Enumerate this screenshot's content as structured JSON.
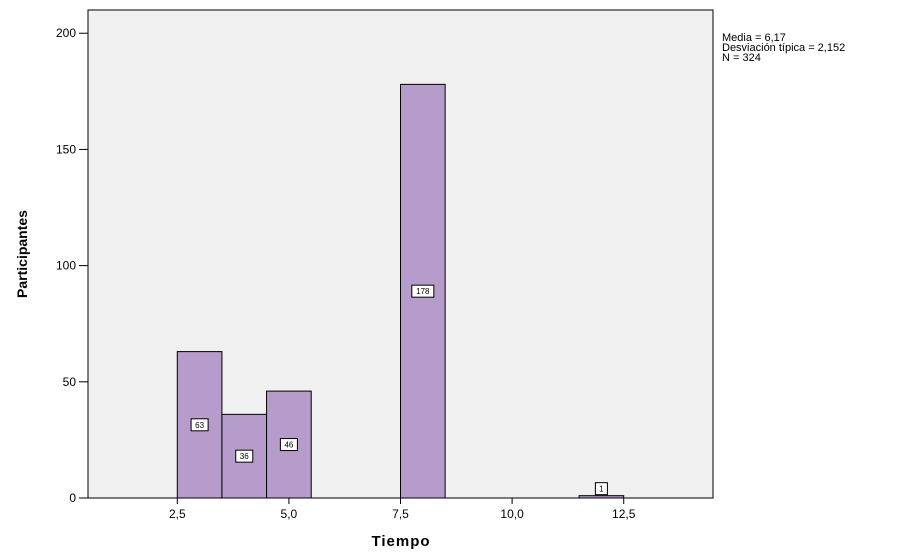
{
  "chart_data": {
    "type": "bar",
    "title": "",
    "xlabel": "Tiempo",
    "ylabel": "Participantes",
    "xlim": [
      0.5,
      14.5
    ],
    "ylim": [
      0,
      210
    ],
    "x_ticks": [
      2.5,
      5.0,
      7.5,
      10.0,
      12.5
    ],
    "x_tick_labels": [
      "2,5",
      "5,0",
      "7,5",
      "10,0",
      "12,5"
    ],
    "y_ticks": [
      0,
      50,
      100,
      150,
      200
    ],
    "y_tick_labels": [
      "0",
      "50",
      "100",
      "150",
      "200"
    ],
    "bins": [
      {
        "from": 2.5,
        "to": 3.5,
        "value": 63,
        "label": "63"
      },
      {
        "from": 3.5,
        "to": 4.5,
        "value": 36,
        "label": "36"
      },
      {
        "from": 4.5,
        "to": 5.5,
        "value": 46,
        "label": "46"
      },
      {
        "from": 7.5,
        "to": 8.5,
        "value": 178,
        "label": "178"
      },
      {
        "from": 11.5,
        "to": 12.5,
        "value": 1,
        "label": "1"
      }
    ],
    "bar_color": "#b59ccb",
    "plot_background": "#f0f0f0",
    "grid": false,
    "stats": {
      "mean_label": "Media = 6,17",
      "sd_label": "Desviación típica = 2,152",
      "n_label": "N = 324"
    }
  }
}
